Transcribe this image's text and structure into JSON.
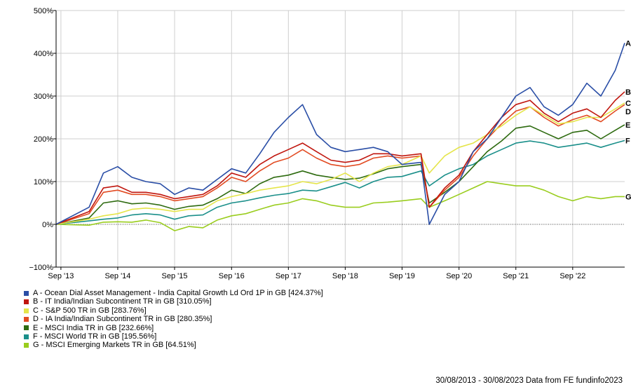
{
  "chart_data": {
    "type": "line",
    "ylim": [
      -100,
      500
    ],
    "y_ticks": [
      -100,
      0,
      100,
      200,
      300,
      400,
      500
    ],
    "y_tick_labels": [
      "−100%",
      "0%",
      "100%",
      "200%",
      "300%",
      "400%",
      "500%"
    ],
    "x_range": [
      "2013-08-30",
      "2023-08-30"
    ],
    "x_ticks": [
      "2013-09-30",
      "2014-09-30",
      "2015-09-30",
      "2016-09-30",
      "2017-09-30",
      "2018-09-30",
      "2019-09-30",
      "2020-09-30",
      "2021-09-30",
      "2022-09-30"
    ],
    "x_tick_labels": [
      "Sep '13",
      "Sep '14",
      "Sep '15",
      "Sep '16",
      "Sep '17",
      "Sep '18",
      "Sep '19",
      "Sep '20",
      "Sep '21",
      "Sep '22"
    ],
    "grid": true,
    "legend_position": "bottom-left",
    "series": [
      {
        "id": "A",
        "name": "A - Ocean Dial Asset Management - India Capital Growth Ld Ord 1P in GB [424.37%]",
        "color": "#2a4ea6",
        "x": [
          "2013-08-30",
          "2014-03-30",
          "2014-06-30",
          "2014-09-30",
          "2014-12-30",
          "2015-03-30",
          "2015-06-30",
          "2015-09-30",
          "2015-12-30",
          "2016-03-30",
          "2016-06-30",
          "2016-09-30",
          "2016-12-30",
          "2017-03-30",
          "2017-06-30",
          "2017-09-30",
          "2017-12-30",
          "2018-03-30",
          "2018-06-30",
          "2018-09-30",
          "2018-12-30",
          "2019-03-30",
          "2019-06-30",
          "2019-09-30",
          "2020-01-30",
          "2020-03-23",
          "2020-06-30",
          "2020-09-30",
          "2020-12-30",
          "2021-03-30",
          "2021-06-30",
          "2021-09-30",
          "2021-12-30",
          "2022-03-30",
          "2022-06-30",
          "2022-09-30",
          "2022-12-30",
          "2023-03-30",
          "2023-06-30",
          "2023-08-30"
        ],
        "y": [
          0,
          40,
          120,
          135,
          110,
          100,
          95,
          70,
          85,
          80,
          105,
          130,
          120,
          165,
          215,
          250,
          280,
          210,
          180,
          170,
          175,
          180,
          170,
          140,
          145,
          0,
          70,
          100,
          170,
          200,
          250,
          300,
          320,
          275,
          255,
          280,
          330,
          300,
          360,
          424
        ]
      },
      {
        "id": "B",
        "name": "B - IT India/Indian Subcontinent TR in GB [310.05%]",
        "color": "#c0160e",
        "x": [
          "2013-08-30",
          "2014-03-30",
          "2014-06-30",
          "2014-09-30",
          "2014-12-30",
          "2015-03-30",
          "2015-06-30",
          "2015-09-30",
          "2015-12-30",
          "2016-03-30",
          "2016-06-30",
          "2016-09-30",
          "2016-12-30",
          "2017-03-30",
          "2017-06-30",
          "2017-09-30",
          "2017-12-30",
          "2018-03-30",
          "2018-06-30",
          "2018-09-30",
          "2018-12-30",
          "2019-03-30",
          "2019-06-30",
          "2019-09-30",
          "2020-01-30",
          "2020-03-23",
          "2020-06-30",
          "2020-09-30",
          "2020-12-30",
          "2021-03-30",
          "2021-06-30",
          "2021-09-30",
          "2021-12-30",
          "2022-03-30",
          "2022-06-30",
          "2022-09-30",
          "2022-12-30",
          "2023-03-30",
          "2023-06-30",
          "2023-08-30"
        ],
        "y": [
          0,
          30,
          85,
          90,
          75,
          75,
          70,
          60,
          65,
          70,
          90,
          120,
          110,
          140,
          160,
          175,
          190,
          170,
          150,
          145,
          150,
          165,
          165,
          160,
          165,
          40,
          85,
          115,
          170,
          210,
          250,
          280,
          290,
          260,
          240,
          260,
          270,
          250,
          290,
          310
        ]
      },
      {
        "id": "C",
        "name": "C - S&P 500 TR in GB [283.76%]",
        "color": "#e5e54a",
        "x": [
          "2013-08-30",
          "2014-03-30",
          "2014-06-30",
          "2014-09-30",
          "2014-12-30",
          "2015-03-30",
          "2015-06-30",
          "2015-09-30",
          "2015-12-30",
          "2016-03-30",
          "2016-06-30",
          "2016-09-30",
          "2016-12-30",
          "2017-03-30",
          "2017-06-30",
          "2017-09-30",
          "2017-12-30",
          "2018-03-30",
          "2018-06-30",
          "2018-09-30",
          "2018-12-30",
          "2019-03-30",
          "2019-06-30",
          "2019-09-30",
          "2020-01-30",
          "2020-03-23",
          "2020-06-30",
          "2020-09-30",
          "2020-12-30",
          "2021-03-30",
          "2021-06-30",
          "2021-09-30",
          "2021-12-30",
          "2022-03-30",
          "2022-06-30",
          "2022-09-30",
          "2022-12-30",
          "2023-03-30",
          "2023-06-30",
          "2023-08-30"
        ],
        "y": [
          0,
          12,
          20,
          25,
          35,
          38,
          35,
          30,
          35,
          35,
          55,
          65,
          72,
          80,
          85,
          90,
          100,
          95,
          105,
          120,
          100,
          120,
          135,
          140,
          160,
          120,
          160,
          180,
          190,
          210,
          230,
          255,
          275,
          255,
          235,
          240,
          250,
          250,
          270,
          284
        ]
      },
      {
        "id": "D",
        "name": "D - IA India/Indian Subcontinent TR in GB [280.35%]",
        "color": "#e24b22",
        "x": [
          "2013-08-30",
          "2014-03-30",
          "2014-06-30",
          "2014-09-30",
          "2014-12-30",
          "2015-03-30",
          "2015-06-30",
          "2015-09-30",
          "2015-12-30",
          "2016-03-30",
          "2016-06-30",
          "2016-09-30",
          "2016-12-30",
          "2017-03-30",
          "2017-06-30",
          "2017-09-30",
          "2017-12-30",
          "2018-03-30",
          "2018-06-30",
          "2018-09-30",
          "2018-12-30",
          "2019-03-30",
          "2019-06-30",
          "2019-09-30",
          "2020-01-30",
          "2020-03-23",
          "2020-06-30",
          "2020-09-30",
          "2020-12-30",
          "2021-03-30",
          "2021-06-30",
          "2021-09-30",
          "2021-12-30",
          "2022-03-30",
          "2022-06-30",
          "2022-09-30",
          "2022-12-30",
          "2023-03-30",
          "2023-06-30",
          "2023-08-30"
        ],
        "y": [
          0,
          25,
          75,
          80,
          70,
          70,
          65,
          55,
          60,
          65,
          85,
          110,
          100,
          125,
          145,
          155,
          175,
          155,
          140,
          135,
          140,
          155,
          160,
          155,
          160,
          40,
          80,
          110,
          160,
          200,
          235,
          265,
          275,
          250,
          230,
          245,
          255,
          240,
          265,
          280
        ]
      },
      {
        "id": "E",
        "name": "E - MSCI India TR in GB [232.66%]",
        "color": "#2e6b10",
        "x": [
          "2013-08-30",
          "2014-03-30",
          "2014-06-30",
          "2014-09-30",
          "2014-12-30",
          "2015-03-30",
          "2015-06-30",
          "2015-09-30",
          "2015-12-30",
          "2016-03-30",
          "2016-06-30",
          "2016-09-30",
          "2016-12-30",
          "2017-03-30",
          "2017-06-30",
          "2017-09-30",
          "2017-12-30",
          "2018-03-30",
          "2018-06-30",
          "2018-09-30",
          "2018-12-30",
          "2019-03-30",
          "2019-06-30",
          "2019-09-30",
          "2020-01-30",
          "2020-03-23",
          "2020-06-30",
          "2020-09-30",
          "2020-12-30",
          "2021-03-30",
          "2021-06-30",
          "2021-09-30",
          "2021-12-30",
          "2022-03-30",
          "2022-06-30",
          "2022-09-30",
          "2022-12-30",
          "2023-03-30",
          "2023-06-30",
          "2023-08-30"
        ],
        "y": [
          0,
          15,
          50,
          55,
          48,
          50,
          45,
          35,
          42,
          45,
          60,
          80,
          72,
          95,
          110,
          115,
          125,
          115,
          110,
          105,
          108,
          118,
          130,
          135,
          140,
          50,
          75,
          100,
          135,
          170,
          195,
          225,
          230,
          215,
          200,
          215,
          220,
          200,
          220,
          233
        ]
      },
      {
        "id": "F",
        "name": "F - MSCI World TR in GB [195.56%]",
        "color": "#1a8f8a",
        "x": [
          "2013-08-30",
          "2014-03-30",
          "2014-06-30",
          "2014-09-30",
          "2014-12-30",
          "2015-03-30",
          "2015-06-30",
          "2015-09-30",
          "2015-12-30",
          "2016-03-30",
          "2016-06-30",
          "2016-09-30",
          "2016-12-30",
          "2017-03-30",
          "2017-06-30",
          "2017-09-30",
          "2017-12-30",
          "2018-03-30",
          "2018-06-30",
          "2018-09-30",
          "2018-12-30",
          "2019-03-30",
          "2019-06-30",
          "2019-09-30",
          "2020-01-30",
          "2020-03-23",
          "2020-06-30",
          "2020-09-30",
          "2020-12-30",
          "2021-03-30",
          "2021-06-30",
          "2021-09-30",
          "2021-12-30",
          "2022-03-30",
          "2022-06-30",
          "2022-09-30",
          "2022-12-30",
          "2023-03-30",
          "2023-06-30",
          "2023-08-30"
        ],
        "y": [
          0,
          8,
          12,
          15,
          22,
          25,
          22,
          12,
          20,
          22,
          40,
          50,
          55,
          62,
          68,
          72,
          80,
          78,
          88,
          98,
          85,
          100,
          110,
          112,
          125,
          90,
          115,
          130,
          140,
          160,
          175,
          190,
          195,
          190,
          180,
          185,
          190,
          180,
          190,
          196
        ]
      },
      {
        "id": "G",
        "name": "G - MSCI Emerging Markets TR in GB [64.51%]",
        "color": "#9acd1e",
        "x": [
          "2013-08-30",
          "2014-03-30",
          "2014-06-30",
          "2014-09-30",
          "2014-12-30",
          "2015-03-30",
          "2015-06-30",
          "2015-09-30",
          "2015-12-30",
          "2016-03-30",
          "2016-06-30",
          "2016-09-30",
          "2016-12-30",
          "2017-03-30",
          "2017-06-30",
          "2017-09-30",
          "2017-12-30",
          "2018-03-30",
          "2018-06-30",
          "2018-09-30",
          "2018-12-30",
          "2019-03-30",
          "2019-06-30",
          "2019-09-30",
          "2020-01-30",
          "2020-03-23",
          "2020-06-30",
          "2020-09-30",
          "2020-12-30",
          "2021-03-30",
          "2021-06-30",
          "2021-09-30",
          "2021-12-30",
          "2022-03-30",
          "2022-06-30",
          "2022-09-30",
          "2022-12-30",
          "2023-03-30",
          "2023-06-30",
          "2023-08-30"
        ],
        "y": [
          0,
          -2,
          5,
          6,
          5,
          10,
          4,
          -15,
          -5,
          -8,
          10,
          20,
          25,
          35,
          45,
          50,
          60,
          55,
          45,
          40,
          40,
          50,
          52,
          55,
          60,
          40,
          55,
          70,
          85,
          100,
          95,
          90,
          90,
          80,
          65,
          55,
          65,
          60,
          65,
          65
        ]
      }
    ]
  },
  "footer": "30/08/2013 - 30/08/2023 Data from FE fundinfo2023"
}
